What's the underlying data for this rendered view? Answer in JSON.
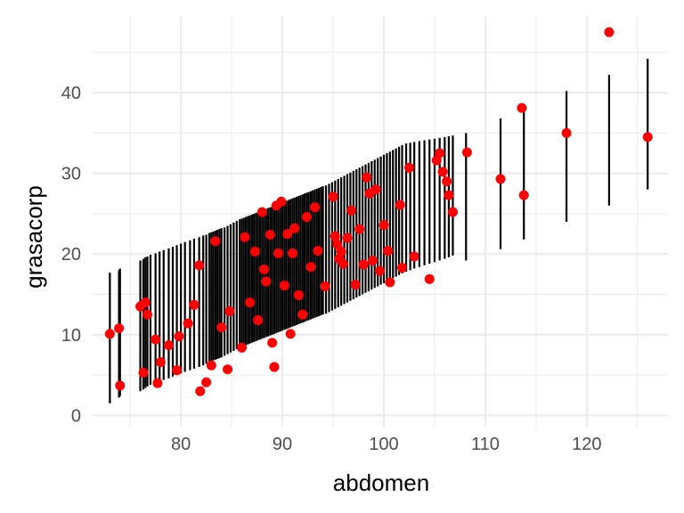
{
  "chart_data": {
    "type": "scatter",
    "xlabel": "abdomen",
    "ylabel": "grasacorp",
    "xlim": [
      71.3,
      128.0
    ],
    "ylim": [
      -1.5,
      49.5
    ],
    "x_ticks": [
      80,
      90,
      100,
      110,
      120
    ],
    "y_ticks": [
      0,
      10,
      20,
      30,
      40
    ],
    "grid": true,
    "colors": {
      "points": "#ff0000",
      "intervals": "#000000",
      "grid": "#ebebeb"
    },
    "series": [
      {
        "kind": "intervals",
        "x": [
          73.0,
          73.9,
          74.0,
          76.0,
          76.3,
          76.5,
          76.7,
          77.0,
          77.5,
          77.9,
          78.3,
          78.8,
          79.2,
          79.6,
          80.0,
          80.4,
          80.9,
          81.3,
          81.8,
          82.2,
          82.5,
          82.8,
          83.0,
          83.2,
          83.4,
          83.6,
          83.8,
          84.0,
          84.3,
          84.6,
          84.9,
          85.2,
          85.5,
          85.8,
          86.0,
          86.2,
          86.4,
          86.6,
          86.8,
          87.0,
          87.2,
          87.4,
          87.6,
          87.8,
          88.0,
          88.2,
          88.4,
          88.6,
          88.8,
          89.0,
          89.2,
          89.4,
          89.6,
          89.8,
          90.0,
          90.2,
          90.4,
          90.6,
          90.8,
          91.0,
          91.2,
          91.4,
          91.6,
          91.8,
          92.0,
          92.2,
          92.4,
          92.6,
          92.8,
          93.0,
          93.2,
          93.4,
          93.6,
          93.8,
          94.0,
          94.3,
          94.6,
          94.9,
          95.2,
          95.5,
          95.8,
          96.1,
          96.4,
          96.7,
          97.0,
          97.3,
          97.6,
          97.9,
          98.2,
          98.5,
          98.8,
          99.1,
          99.4,
          99.7,
          100.0,
          100.3,
          100.6,
          100.9,
          101.2,
          101.5,
          101.8,
          102.2,
          102.6,
          103.0,
          103.5,
          104.0,
          104.5,
          105.0,
          105.5,
          106.0,
          106.4,
          106.8,
          108.1,
          111.5,
          113.8,
          118.0,
          122.2,
          126.0
        ],
        "low": [
          1.5,
          2.2,
          2.4,
          3.0,
          3.2,
          3.4,
          3.6,
          3.8,
          4.0,
          4.2,
          4.4,
          4.6,
          4.8,
          5.0,
          5.2,
          5.4,
          5.6,
          5.8,
          6.0,
          6.2,
          6.4,
          6.6,
          6.7,
          6.8,
          6.9,
          7.0,
          7.1,
          7.2,
          7.4,
          7.6,
          7.8,
          8.0,
          8.2,
          8.4,
          8.5,
          8.6,
          8.7,
          8.8,
          8.9,
          9.0,
          9.1,
          9.2,
          9.3,
          9.4,
          9.5,
          9.6,
          9.7,
          9.8,
          9.9,
          10.0,
          10.1,
          10.2,
          10.3,
          10.4,
          10.5,
          10.6,
          10.7,
          10.8,
          10.9,
          11.0,
          11.1,
          11.2,
          11.3,
          11.4,
          11.5,
          11.6,
          11.7,
          11.8,
          11.9,
          12.0,
          12.1,
          12.2,
          12.3,
          12.4,
          12.5,
          12.6,
          12.8,
          13.0,
          13.2,
          13.4,
          13.6,
          13.8,
          14.0,
          14.2,
          14.4,
          14.6,
          14.8,
          15.0,
          15.2,
          15.4,
          15.6,
          15.8,
          16.0,
          16.2,
          16.4,
          16.6,
          16.8,
          17.0,
          17.2,
          17.4,
          17.6,
          17.8,
          18.0,
          18.2,
          18.4,
          18.6,
          18.8,
          19.0,
          19.2,
          19.4,
          19.6,
          19.8,
          19.2,
          20.6,
          21.8,
          24.0,
          26.0,
          28.0
        ],
        "high": [
          17.7,
          18.0,
          18.2,
          19.2,
          19.4,
          19.6,
          19.7,
          19.9,
          20.1,
          20.3,
          20.5,
          20.7,
          20.9,
          21.1,
          21.3,
          21.5,
          21.7,
          21.9,
          22.1,
          22.3,
          22.4,
          22.6,
          22.7,
          22.8,
          22.9,
          23.0,
          23.1,
          23.2,
          23.3,
          23.5,
          23.7,
          23.9,
          24.1,
          24.3,
          24.4,
          24.5,
          24.6,
          24.7,
          24.8,
          24.9,
          25.0,
          25.1,
          25.2,
          25.3,
          25.4,
          25.5,
          25.6,
          25.7,
          25.8,
          25.9,
          26.0,
          26.1,
          26.2,
          26.3,
          26.4,
          26.5,
          26.6,
          26.7,
          26.8,
          26.9,
          27.0,
          27.1,
          27.2,
          27.3,
          27.4,
          27.5,
          27.6,
          27.7,
          27.8,
          27.9,
          28.0,
          28.1,
          28.2,
          28.3,
          28.4,
          28.5,
          28.7,
          28.9,
          29.1,
          29.3,
          29.5,
          29.7,
          29.9,
          30.1,
          30.3,
          30.5,
          30.7,
          30.9,
          31.1,
          31.3,
          31.5,
          31.7,
          31.9,
          32.1,
          32.3,
          32.5,
          32.7,
          32.9,
          33.1,
          33.3,
          33.5,
          33.7,
          33.8,
          33.9,
          34.0,
          34.1,
          34.2,
          34.3,
          34.4,
          34.5,
          34.6,
          34.7,
          35.0,
          36.8,
          37.8,
          40.2,
          42.2,
          44.2
        ]
      },
      {
        "kind": "points",
        "x": [
          73.0,
          73.9,
          74.0,
          76.0,
          76.3,
          76.5,
          76.7,
          77.5,
          77.7,
          78.0,
          78.8,
          79.6,
          79.8,
          80.7,
          81.3,
          81.8,
          81.9,
          82.5,
          83.0,
          83.4,
          84.0,
          84.6,
          84.8,
          86.0,
          86.3,
          86.8,
          87.3,
          87.6,
          88.0,
          88.2,
          88.4,
          88.8,
          89.0,
          89.2,
          89.4,
          89.6,
          89.9,
          90.2,
          90.5,
          90.8,
          91.0,
          91.2,
          91.6,
          92.0,
          92.4,
          92.8,
          93.2,
          93.5,
          94.2,
          95.0,
          95.2,
          95.4,
          95.6,
          95.8,
          96.0,
          96.4,
          96.8,
          97.2,
          97.6,
          98.0,
          98.3,
          98.6,
          98.9,
          99.2,
          99.6,
          100.0,
          100.4,
          100.6,
          101.6,
          101.8,
          102.5,
          103.0,
          104.5,
          105.2,
          105.5,
          105.8,
          106.2,
          106.4,
          106.8,
          108.2,
          111.5,
          113.6,
          113.8,
          118.0,
          122.2,
          126.0
        ],
        "y": [
          10.1,
          10.8,
          3.7,
          13.5,
          5.3,
          14.0,
          12.5,
          9.4,
          4.0,
          6.6,
          8.7,
          5.6,
          9.8,
          11.4,
          13.7,
          18.6,
          3.0,
          4.1,
          6.2,
          21.6,
          10.9,
          5.7,
          12.9,
          8.4,
          22.1,
          14.0,
          20.3,
          11.8,
          25.2,
          18.1,
          16.6,
          22.4,
          9.0,
          6.0,
          26.0,
          20.1,
          26.5,
          16.1,
          22.5,
          10.1,
          20.1,
          23.2,
          14.9,
          12.5,
          24.6,
          18.4,
          25.8,
          20.4,
          16.0,
          27.1,
          22.2,
          21.2,
          19.4,
          20.3,
          18.8,
          22.0,
          25.4,
          16.2,
          23.1,
          18.7,
          29.5,
          27.5,
          19.2,
          28.0,
          17.9,
          23.6,
          20.4,
          16.5,
          26.1,
          18.3,
          30.7,
          19.7,
          16.9,
          31.6,
          32.5,
          30.2,
          29.0,
          27.3,
          25.2,
          32.6,
          29.3,
          38.1,
          27.3,
          35.0,
          47.5,
          34.5
        ]
      }
    ]
  }
}
